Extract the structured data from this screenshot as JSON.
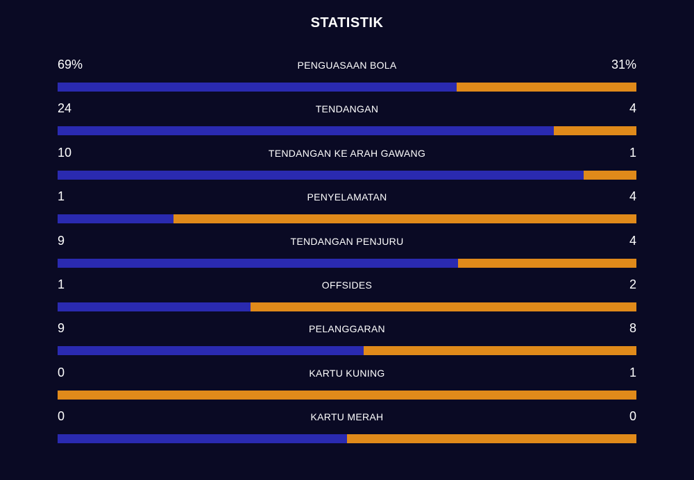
{
  "title": "STATISTIK",
  "colors": {
    "background": "#0a0a24",
    "home": "#2a2ab0",
    "away": "#e08a1a",
    "text": "#ffffff"
  },
  "stats": [
    {
      "label": "PENGUASAAN BOLA",
      "home": "69%",
      "away": "31%",
      "home_share": 0.69
    },
    {
      "label": "TENDANGAN",
      "home": "24",
      "away": "4",
      "home_share": 0.857
    },
    {
      "label": "TENDANGAN KE ARAH GAWANG",
      "home": "10",
      "away": "1",
      "home_share": 0.909
    },
    {
      "label": "PENYELAMATAN",
      "home": "1",
      "away": "4",
      "home_share": 0.2
    },
    {
      "label": "TENDANGAN PENJURU",
      "home": "9",
      "away": "4",
      "home_share": 0.692
    },
    {
      "label": "OFFSIDES",
      "home": "1",
      "away": "2",
      "home_share": 0.333
    },
    {
      "label": "PELANGGARAN",
      "home": "9",
      "away": "8",
      "home_share": 0.529
    },
    {
      "label": "KARTU KUNING",
      "home": "0",
      "away": "1",
      "home_share": 0.0
    },
    {
      "label": "KARTU MERAH",
      "home": "0",
      "away": "0",
      "home_share": 0.5
    }
  ]
}
